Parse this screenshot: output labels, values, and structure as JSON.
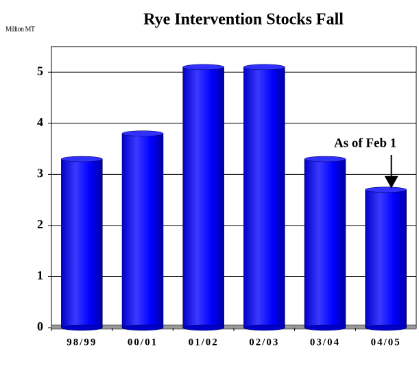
{
  "chart_data": {
    "type": "bar",
    "title": "Rye Intervention Stocks Fall",
    "y_label": "Million MT",
    "categories": [
      "98/99",
      "00/01",
      "01/02",
      "02/03",
      "03/04",
      "04/05"
    ],
    "values": [
      3.3,
      3.8,
      5.1,
      5.1,
      3.3,
      2.7
    ],
    "color": "#0000ff",
    "ylim": [
      0,
      5.5
    ],
    "yticks": [
      0,
      1,
      2,
      3,
      4,
      5
    ],
    "grid": true,
    "annotation": "As of Feb 1"
  }
}
